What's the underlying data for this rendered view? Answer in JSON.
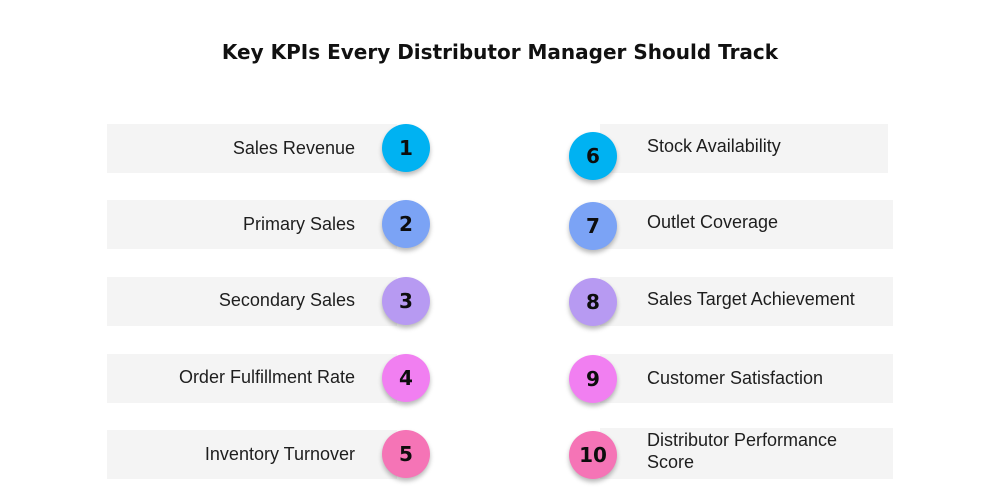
{
  "title": "Key KPIs Every Distributor Manager Should Track",
  "colors": {
    "c1": "#00b2f2",
    "c2": "#7ba3f5",
    "c3": "#b79af2",
    "c4": "#f17ff1",
    "c5": "#f574b6",
    "bar_bg": "#f4f4f4"
  },
  "left_items": [
    {
      "number": "1",
      "label": "Sales Revenue"
    },
    {
      "number": "2",
      "label": "Primary Sales"
    },
    {
      "number": "3",
      "label": "Secondary Sales"
    },
    {
      "number": "4",
      "label": "Order Fulfillment Rate"
    },
    {
      "number": "5",
      "label": "Inventory Turnover"
    }
  ],
  "right_items": [
    {
      "number": "6",
      "label": "Stock Availability"
    },
    {
      "number": "7",
      "label": "Outlet Coverage"
    },
    {
      "number": "8",
      "label": "Sales Target Achievement"
    },
    {
      "number": "9",
      "label": "Customer Satisfaction"
    },
    {
      "number": "10",
      "label": "Distributor Performance Score"
    }
  ]
}
